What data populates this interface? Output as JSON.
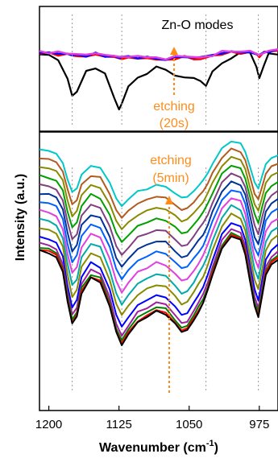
{
  "chart_data": [
    {
      "type": "line",
      "panel": "top",
      "title": "",
      "annotations": [
        {
          "text": "Zn-O modes",
          "color": "#000000"
        },
        {
          "text": "etching",
          "color": "#ff8c1a"
        },
        {
          "text": "(20s)",
          "color": "#ff8c1a"
        }
      ],
      "xlim": [
        1210,
        955
      ],
      "x_reversed": true,
      "reference_lines_x": [
        1175,
        1122,
        1032,
        976
      ],
      "x": [
        1210,
        1200,
        1190,
        1180,
        1175,
        1170,
        1160,
        1150,
        1140,
        1130,
        1125,
        1122,
        1115,
        1105,
        1095,
        1085,
        1075,
        1065,
        1055,
        1045,
        1038,
        1032,
        1025,
        1015,
        1005,
        995,
        985,
        978,
        975,
        970,
        965,
        955
      ],
      "series": [
        {
          "color": "#000000",
          "values": [
            0.02,
            0.02,
            -0.05,
            -0.3,
            -0.55,
            -0.48,
            -0.2,
            -0.15,
            -0.25,
            -0.55,
            -0.72,
            -0.62,
            -0.4,
            -0.3,
            -0.22,
            -0.15,
            -0.18,
            -0.25,
            -0.3,
            -0.28,
            -0.32,
            -0.38,
            -0.2,
            -0.1,
            -0.02,
            0.05,
            0.05,
            -0.15,
            -0.28,
            -0.12,
            0.02,
            0.04
          ]
        },
        {
          "color": "#ff0000",
          "values": [
            0.04,
            0.04,
            0.03,
            0.02,
            0.01,
            0.01,
            0.0,
            0.02,
            0.0,
            -0.01,
            -0.03,
            -0.03,
            -0.02,
            -0.02,
            -0.03,
            -0.04,
            -0.05,
            -0.03,
            -0.01,
            -0.03,
            -0.04,
            -0.02,
            0.0,
            0.04,
            0.05,
            0.04,
            0.06,
            0.02,
            -0.01,
            0.04,
            0.06,
            0.08
          ]
        },
        {
          "color": "#0000ff",
          "values": [
            0.05,
            0.05,
            0.04,
            0.03,
            0.02,
            0.02,
            0.01,
            0.03,
            0.01,
            0.0,
            -0.02,
            -0.02,
            -0.01,
            -0.01,
            -0.02,
            -0.03,
            -0.04,
            -0.02,
            0.0,
            -0.02,
            -0.03,
            -0.01,
            0.01,
            0.05,
            0.06,
            0.05,
            0.07,
            0.03,
            0.0,
            0.05,
            0.07,
            0.09
          ]
        },
        {
          "color": "#e040e0",
          "values": [
            0.06,
            0.06,
            0.05,
            0.04,
            0.03,
            0.03,
            0.02,
            0.04,
            0.02,
            0.01,
            -0.01,
            -0.01,
            0.0,
            0.0,
            -0.01,
            -0.02,
            -0.03,
            -0.01,
            0.01,
            -0.01,
            -0.02,
            0.0,
            0.02,
            0.06,
            0.07,
            0.06,
            0.08,
            0.04,
            0.01,
            0.06,
            0.08,
            0.1
          ]
        }
      ]
    },
    {
      "type": "line",
      "panel": "bottom",
      "title": "",
      "xlabel": "Wavenumber (cm",
      "xlabel_sup": "-1",
      "xlabel_end": ")",
      "ylabel": "Intensity (a.u.)",
      "annotations": [
        {
          "text": "etching",
          "color": "#ff8c1a"
        },
        {
          "text": "(5min)",
          "color": "#ff8c1a"
        }
      ],
      "xlim": [
        1210,
        955
      ],
      "x_reversed": true,
      "xticks": [
        1200,
        1125,
        1050,
        975
      ],
      "reference_lines_x": [
        1175,
        1122,
        1032,
        976
      ],
      "profile_x": [
        1210,
        1200,
        1192,
        1185,
        1180,
        1175,
        1170,
        1165,
        1155,
        1145,
        1135,
        1128,
        1122,
        1115,
        1105,
        1095,
        1085,
        1075,
        1065,
        1058,
        1052,
        1045,
        1040,
        1035,
        1030,
        1025,
        1015,
        1005,
        995,
        990,
        985,
        980,
        976,
        972,
        968,
        962,
        955
      ],
      "profile_y": [
        0.08,
        0.06,
        0.02,
        -0.12,
        -0.4,
        -0.62,
        -0.55,
        -0.32,
        -0.18,
        -0.22,
        -0.45,
        -0.7,
        -0.82,
        -0.72,
        -0.6,
        -0.55,
        -0.5,
        -0.52,
        -0.62,
        -0.7,
        -0.68,
        -0.58,
        -0.5,
        -0.42,
        -0.3,
        -0.15,
        0.1,
        0.22,
        0.18,
        0.05,
        -0.2,
        -0.45,
        -0.55,
        -0.35,
        -0.15,
        -0.05,
        0.0
      ],
      "series": [
        {
          "color": "#00c8c8",
          "offset": 11.6,
          "scale": 0.6
        },
        {
          "color": "#b35a1f",
          "offset": 10.6,
          "scale": 0.64
        },
        {
          "color": "#8a8a00",
          "offset": 9.6,
          "scale": 0.68
        },
        {
          "color": "#00a000",
          "offset": 8.6,
          "scale": 0.72
        },
        {
          "color": "#804080",
          "offset": 7.6,
          "scale": 0.76
        },
        {
          "color": "#003399",
          "offset": 6.6,
          "scale": 0.8
        },
        {
          "color": "#0060ff",
          "offset": 5.6,
          "scale": 0.84
        },
        {
          "color": "#e040e0",
          "offset": 4.6,
          "scale": 0.88
        },
        {
          "color": "#00aaaa",
          "offset": 3.6,
          "scale": 0.92
        },
        {
          "color": "#8a8a00",
          "offset": 2.6,
          "scale": 0.95
        },
        {
          "color": "#0000ff",
          "offset": 1.6,
          "scale": 0.98
        },
        {
          "color": "#a020a0",
          "offset": 0.9,
          "scale": 1.0
        },
        {
          "color": "#008000",
          "offset": 0.4,
          "scale": 1.0
        },
        {
          "color": "#ff0000",
          "offset": 0.15,
          "scale": 1.02
        },
        {
          "color": "#000000",
          "offset": 0.0,
          "scale": 1.02
        }
      ]
    }
  ]
}
